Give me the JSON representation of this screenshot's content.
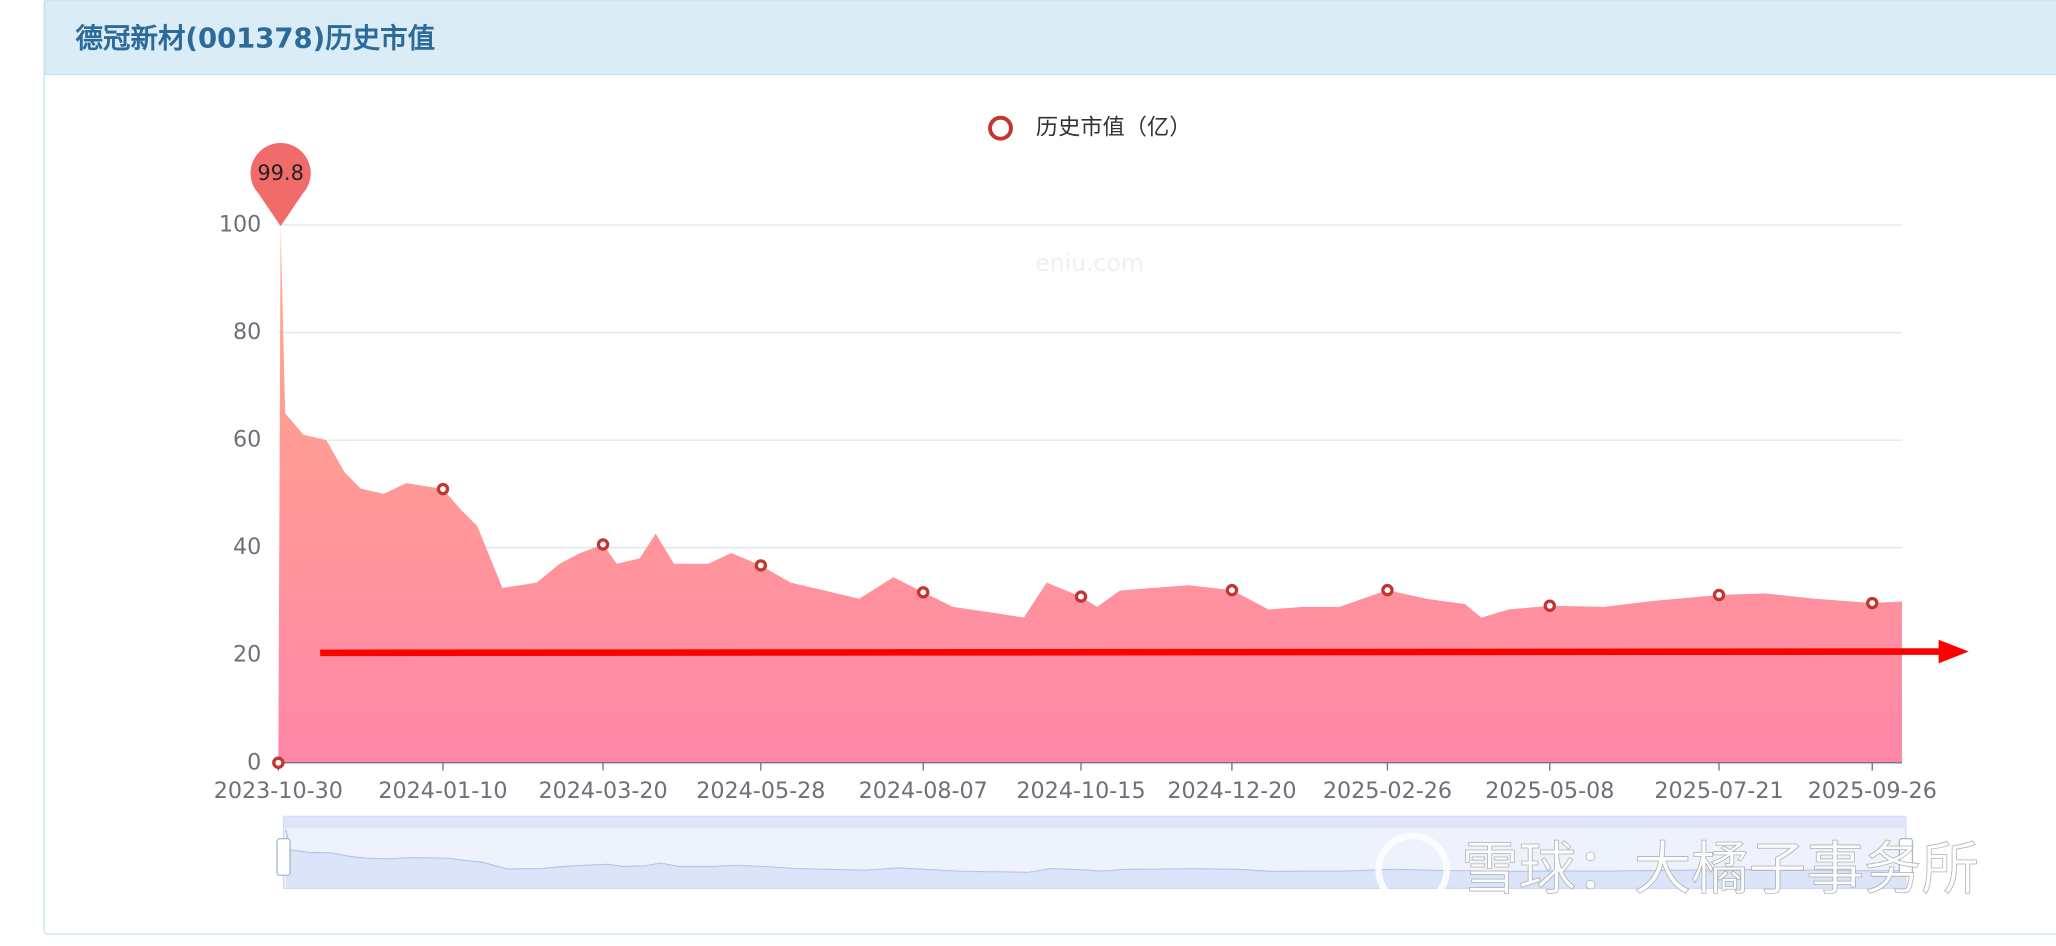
{
  "header": {
    "title": "德冠新材(001378)历史市值"
  },
  "chart_data": {
    "type": "area",
    "x": [
      "2023-10-30",
      "2023-10-31",
      "2023-11-02",
      "2023-11-10",
      "2023-11-20",
      "2023-11-28",
      "2023-12-05",
      "2023-12-15",
      "2023-12-25",
      "2024-01-10",
      "2024-01-18",
      "2024-01-25",
      "2024-02-05",
      "2024-02-20",
      "2024-03-01",
      "2024-03-10",
      "2024-03-20",
      "2024-03-26",
      "2024-04-05",
      "2024-04-12",
      "2024-04-20",
      "2024-05-05",
      "2024-05-15",
      "2024-05-28",
      "2024-06-10",
      "2024-06-25",
      "2024-07-10",
      "2024-07-25",
      "2024-08-07",
      "2024-08-20",
      "2024-09-05",
      "2024-09-20",
      "2024-09-30",
      "2024-10-15",
      "2024-10-22",
      "2024-11-01",
      "2024-11-15",
      "2024-12-01",
      "2024-12-20",
      "2025-01-05",
      "2025-01-20",
      "2025-02-05",
      "2025-02-26",
      "2025-03-15",
      "2025-04-01",
      "2025-04-08",
      "2025-04-20",
      "2025-05-08",
      "2025-06-01",
      "2025-06-20",
      "2025-07-21",
      "2025-08-10",
      "2025-09-01",
      "2025-09-26",
      "2025-10-09"
    ],
    "series": [
      {
        "name": "历史市值（亿）",
        "color": "#c23531",
        "area_colors": [
          "#ffab86",
          "#ff86a8"
        ],
        "values": [
          0,
          99.8,
          65,
          61,
          60,
          54,
          51,
          50,
          52,
          50.9,
          47,
          44,
          32.5,
          33.5,
          37,
          39,
          40.6,
          37,
          38,
          42.6,
          37,
          37,
          39,
          36.7,
          33.5,
          32,
          30.5,
          34.5,
          31.7,
          29,
          28,
          27,
          33.5,
          30.9,
          29,
          32,
          32.5,
          33,
          32.1,
          28.5,
          29,
          29,
          32.1,
          30.5,
          29.5,
          27,
          28.5,
          29.2,
          29,
          30,
          31.2,
          31.5,
          30.5,
          29.7,
          30
        ]
      }
    ],
    "max_label": "99.8",
    "xlim": [
      "2023-10-30",
      "2025-10-09"
    ],
    "xticks": [
      "2023-10-30",
      "2024-01-10",
      "2024-03-20",
      "2024-05-28",
      "2024-08-07",
      "2024-10-15",
      "2024-12-20",
      "2025-02-26",
      "2025-05-08",
      "2025-07-21",
      "2025-09-26"
    ],
    "ylim": [
      0,
      100
    ],
    "yticks": [
      0,
      20,
      40,
      60,
      80,
      100
    ],
    "grid": true,
    "watermark": "eniu.com"
  },
  "overlay": {
    "watermark": "雪球：大橘子事务所"
  }
}
